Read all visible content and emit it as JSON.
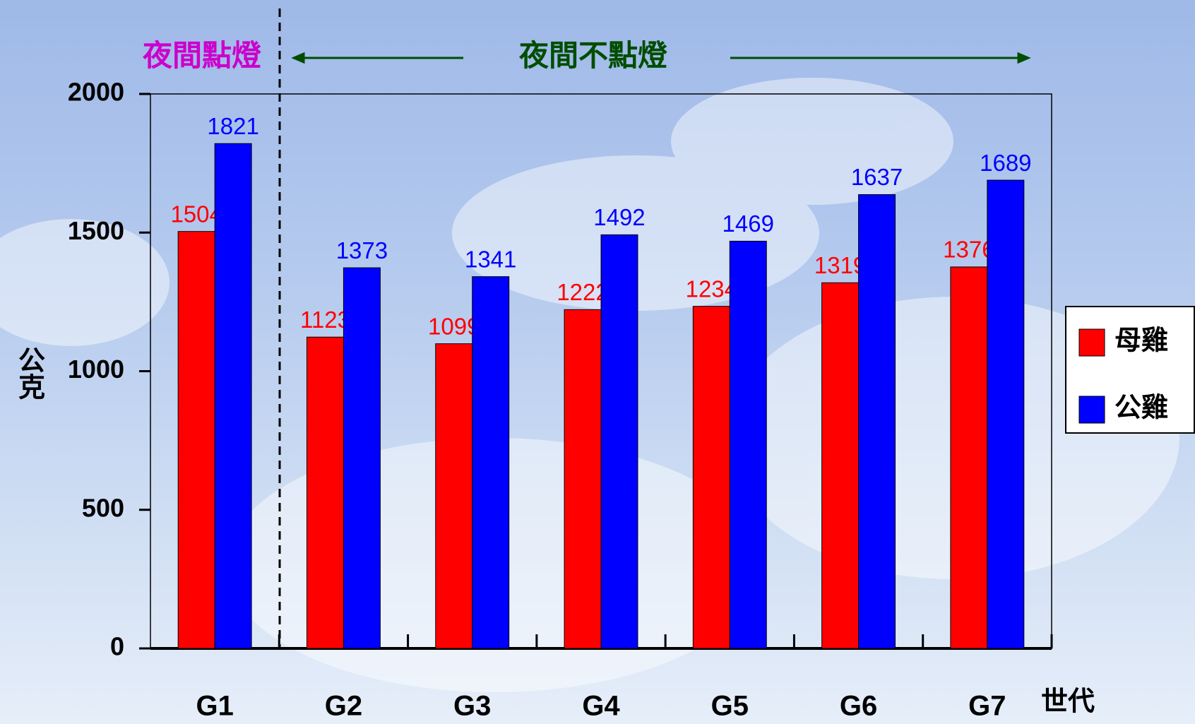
{
  "chart_data": {
    "type": "bar",
    "annotations": [
      "夜間點燈",
      "夜間不點燈"
    ],
    "y_label": "公克",
    "x_label": "世代",
    "categories": [
      "G1",
      "G2",
      "G3",
      "G4",
      "G5",
      "G6",
      "G7"
    ],
    "series": [
      {
        "name": "母雞",
        "color": "#ff0000",
        "values": [
          1504,
          1123,
          1099,
          1222,
          1234,
          1319,
          1376
        ]
      },
      {
        "name": "公雞",
        "color": "#0000ff",
        "values": [
          1821,
          1373,
          1341,
          1492,
          1469,
          1637,
          1689
        ]
      }
    ],
    "ylim": [
      0,
      2000
    ],
    "yticks": [
      0,
      500,
      1000,
      1500,
      2000
    ],
    "grid": false,
    "legend": "right"
  }
}
